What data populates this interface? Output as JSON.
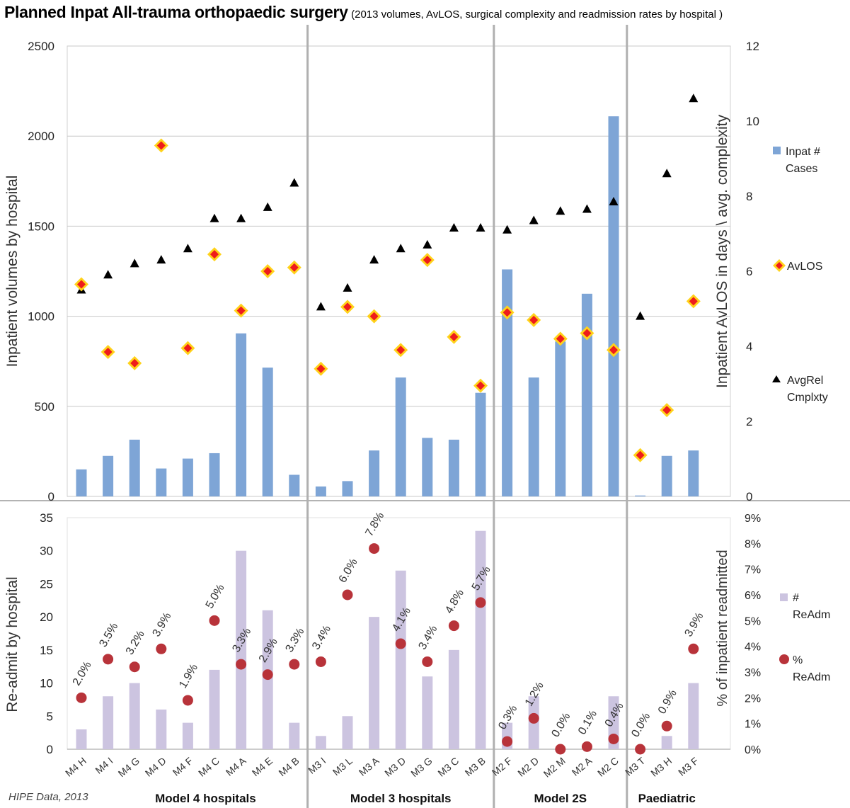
{
  "title_main": "Planned Inpat All-trauma orthopaedic surgery",
  "title_sub": "(2013 volumes, AvLOS, surgical complexity and readmission rates by hospital )",
  "source_note": "HIPE Data, 2013",
  "colors": {
    "volume_bar": "#7ea5d6",
    "readm_bar": "#ccc4e0",
    "avlos_fill": "#ee1c1c",
    "avlos_border": "#ffd21a",
    "complexity": "#000000",
    "readm_pct": "#b8333a",
    "grid": "#c8c8c8",
    "separator": "#b0b0b0"
  },
  "chart_data": [
    {
      "type": "bar",
      "title": "",
      "categories": [
        "M4 H",
        "M4 I",
        "M4 G",
        "M4 D",
        "M4 F",
        "M4 C",
        "M4 A",
        "M4 E",
        "M4 B",
        "M3 I",
        "M3 L",
        "M3 A",
        "M3 D",
        "M3 G",
        "M3 C",
        "M3 B",
        "M2 F",
        "M2 D",
        "M2 M",
        "M2 A",
        "M2 C",
        "M3 T",
        "M3 H",
        "M3 F"
      ],
      "groups": [
        {
          "label": "Model 4 hospitals",
          "count": 9
        },
        {
          "label": "Model 3 hospitals",
          "count": 7
        },
        {
          "label": "Model 2S",
          "count": 5
        },
        {
          "label": "Paediatric",
          "count": 3
        }
      ],
      "ylabel": "Inpatient volumes by hospital",
      "y2label": "Inpatient AvLOS in days \\ avg. complexity",
      "ylim": [
        0,
        2500
      ],
      "y2lim": [
        0,
        12
      ],
      "yticks": [
        0,
        500,
        1000,
        1500,
        2000,
        2500
      ],
      "y2ticks": [
        0,
        2,
        4,
        6,
        8,
        10,
        12
      ],
      "grid": true,
      "legend_position": "right",
      "series": [
        {
          "name": "Inpat # Cases",
          "kind": "bar",
          "axis": "left",
          "values": [
            150,
            225,
            315,
            155,
            210,
            240,
            905,
            715,
            120,
            55,
            85,
            255,
            660,
            325,
            315,
            575,
            1260,
            660,
            860,
            1125,
            2110,
            5,
            225,
            255
          ]
        },
        {
          "name": "AvLOS",
          "kind": "marker",
          "axis": "right",
          "values": [
            5.65,
            3.85,
            3.55,
            9.35,
            3.95,
            6.45,
            4.95,
            6.0,
            6.1,
            3.4,
            5.05,
            4.8,
            3.9,
            6.3,
            4.25,
            2.95,
            4.9,
            4.7,
            4.2,
            4.35,
            3.9,
            1.1,
            2.3,
            5.2
          ]
        },
        {
          "name": "AvgRel Cmplxty",
          "kind": "marker",
          "axis": "right",
          "values": [
            5.5,
            5.9,
            6.2,
            6.3,
            6.6,
            7.4,
            7.4,
            7.7,
            8.35,
            5.05,
            5.55,
            6.3,
            6.6,
            6.7,
            7.15,
            7.15,
            7.1,
            7.35,
            7.6,
            7.65,
            7.85,
            4.8,
            8.6,
            10.6
          ]
        }
      ]
    },
    {
      "type": "bar",
      "title": "",
      "categories": [
        "M4 H",
        "M4 I",
        "M4 G",
        "M4 D",
        "M4 F",
        "M4 C",
        "M4 A",
        "M4 E",
        "M4 B",
        "M3 I",
        "M3 L",
        "M3 A",
        "M3 D",
        "M3 G",
        "M3 C",
        "M3 B",
        "M2 F",
        "M2 D",
        "M2 M",
        "M2 A",
        "M2 C",
        "M3 T",
        "M3 H",
        "M3 F"
      ],
      "ylabel": "Re-admit by hospital",
      "y2label": "% of inpatient readmitted",
      "ylim": [
        0,
        35
      ],
      "y2lim": [
        0,
        9
      ],
      "yticks": [
        0,
        5,
        10,
        15,
        20,
        25,
        30,
        35
      ],
      "y2ticks": [
        "0%",
        "1%",
        "2%",
        "3%",
        "4%",
        "5%",
        "6%",
        "7%",
        "8%",
        "9%"
      ],
      "grid": false,
      "legend_position": "right",
      "series": [
        {
          "name": "# ReAdm",
          "kind": "bar",
          "axis": "left",
          "values": [
            3,
            8,
            10,
            6,
            4,
            12,
            30,
            21,
            4,
            2,
            5,
            20,
            27,
            11,
            15,
            33,
            4,
            8,
            0,
            0,
            8,
            0,
            2,
            10
          ]
        },
        {
          "name": "% ReAdm",
          "kind": "marker",
          "axis": "right",
          "values": [
            2.0,
            3.5,
            3.2,
            3.9,
            1.9,
            5.0,
            3.3,
            2.9,
            3.3,
            3.4,
            6.0,
            7.8,
            4.1,
            3.4,
            4.8,
            5.7,
            0.3,
            1.2,
            0.0,
            0.1,
            0.4,
            0.0,
            0.9,
            3.9
          ],
          "labels": [
            "2.0%",
            "3.5%",
            "3.2%",
            "3.9%",
            "1.9%",
            "5.0%",
            "3.3%",
            "2.9%",
            "3.3%",
            "3.4%",
            "6.0%",
            "7.8%",
            "4.1%",
            "3.4%",
            "4.8%",
            "5.7%",
            "0.3%",
            "1.2%",
            "0.0%",
            "0.1%",
            "0.4%",
            "0.0%",
            "0.9%",
            "3.9%"
          ]
        }
      ]
    }
  ]
}
